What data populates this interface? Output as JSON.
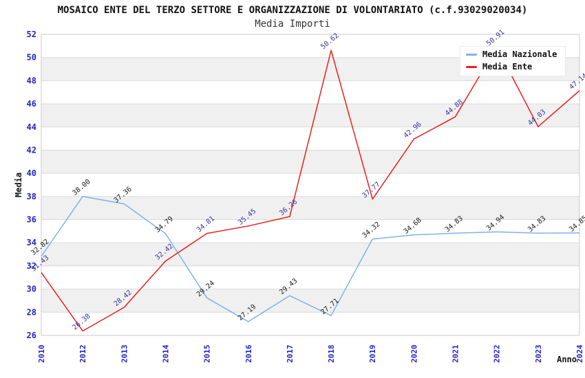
{
  "header": {
    "title": "MOSAICO ENTE DEL TERZO SETTORE E ORGANIZZAZIONE DI VOLONTARIATO (c.f.93029020034)",
    "subtitle": "Media Importi"
  },
  "chart_data": {
    "type": "line",
    "title": "MOSAICO ENTE DEL TERZO SETTORE E ORGANIZZAZIONE DI VOLONTARIATO (c.f.93029020034)",
    "subtitle": "Media Importi",
    "xlabel": "Anno",
    "ylabel": "Media",
    "ylim": [
      26,
      52
    ],
    "ytick_step": 2,
    "grid": "horizontal-bands-alternating",
    "legend_position": "top-right",
    "categories": [
      "2010",
      "2012",
      "2013",
      "2014",
      "2015",
      "2016",
      "2017",
      "2018",
      "2019",
      "2020",
      "2021",
      "2022",
      "2023",
      "2024"
    ],
    "series": [
      {
        "name": "Media Nazionale",
        "color": "#7fb2e6",
        "label_color": "#1a1a1a",
        "values": [
          32.82,
          38.0,
          37.36,
          34.79,
          29.24,
          27.19,
          29.43,
          27.71,
          34.32,
          34.68,
          34.83,
          34.94,
          34.83,
          34.85
        ]
      },
      {
        "name": "Media Ente",
        "color": "#ee1c1c",
        "label_color": "#333399",
        "values": [
          31.43,
          26.38,
          28.42,
          32.42,
          34.81,
          35.45,
          36.26,
          50.62,
          37.77,
          42.96,
          44.88,
          50.91,
          44.03,
          47.14
        ]
      }
    ]
  },
  "colors": {
    "axis_tick": "#2222cc",
    "band_gray": "#f0f0f0",
    "band_white": "#ffffff",
    "gridline": "#d9d9d9",
    "plot_border": "#c8c8c8",
    "axis_title": "#111111",
    "background": "#ffffff"
  }
}
